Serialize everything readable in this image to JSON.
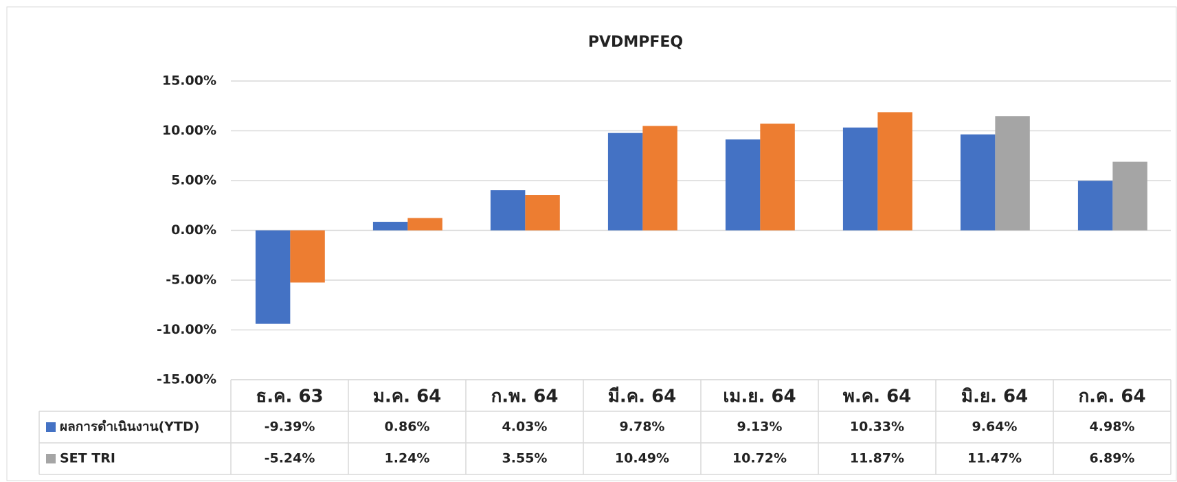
{
  "chart_data": {
    "type": "bar",
    "title": "PVDMPFEQ",
    "categories": [
      "ธ.ค. 63",
      "ม.ค. 64",
      "ก.พ. 64",
      "มี.ค. 64",
      "เม.ย. 64",
      "พ.ค. 64",
      "มิ.ย. 64",
      "ก.ค. 64"
    ],
    "series": [
      {
        "name": "ผลการดำเนินงาน(YTD)",
        "color": "#4472c4",
        "values": [
          -9.39,
          0.86,
          4.03,
          9.78,
          9.13,
          10.33,
          9.64,
          4.98
        ],
        "value_labels": [
          "-9.39%",
          "0.86%",
          "4.03%",
          "9.78%",
          "9.13%",
          "10.33%",
          "9.64%",
          "4.98%"
        ]
      },
      {
        "name": "SET TRI",
        "color": "#a5a5a5",
        "point_colors": [
          "#ed7d31",
          "#ed7d31",
          "#ed7d31",
          "#ed7d31",
          "#ed7d31",
          "#ed7d31",
          "#a5a5a5",
          "#a5a5a5"
        ],
        "values": [
          -5.24,
          1.24,
          3.55,
          10.49,
          10.72,
          11.87,
          11.47,
          6.89
        ],
        "value_labels": [
          "-5.24%",
          "1.24%",
          "3.55%",
          "10.49%",
          "10.72%",
          "11.87%",
          "11.47%",
          "6.89%"
        ]
      }
    ],
    "ylim": [
      -15,
      15
    ],
    "yticks": [
      {
        "value": -15,
        "label": "-15.00%"
      },
      {
        "value": -10,
        "label": "-10.00%"
      },
      {
        "value": -5,
        "label": "-5.00%"
      },
      {
        "value": 0,
        "label": "0.00%"
      },
      {
        "value": 5,
        "label": "5.00%"
      },
      {
        "value": 10,
        "label": "10.00%"
      },
      {
        "value": 15,
        "label": "15.00%"
      }
    ],
    "grid": true
  }
}
